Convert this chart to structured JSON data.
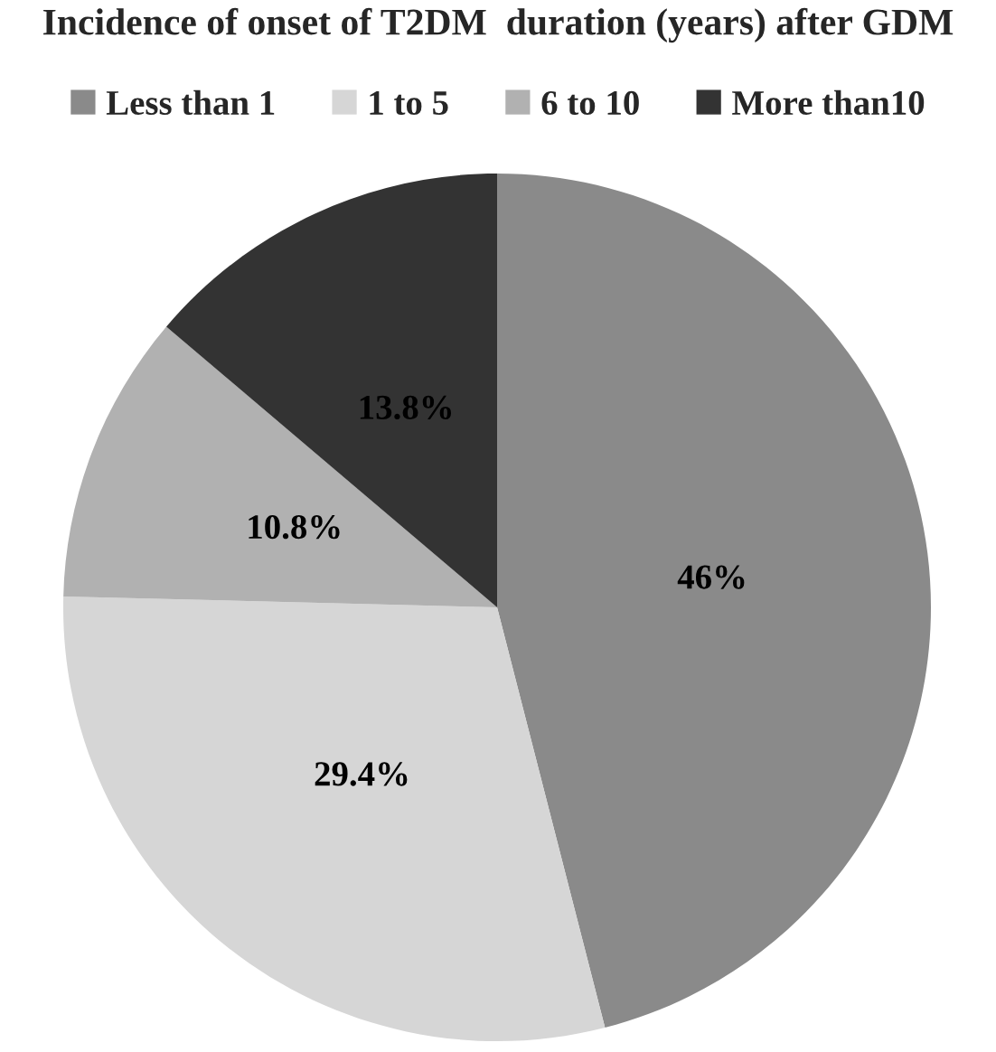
{
  "chart_data": {
    "type": "pie",
    "title": "Incidence of onset of T2DM  duration (years) after GDM",
    "categories": [
      "Less than 1",
      "1 to 5",
      "6 to 10",
      "More than10"
    ],
    "values": [
      46,
      29.4,
      10.8,
      13.8
    ],
    "colors": [
      "#8a8a8a",
      "#d6d6d6",
      "#b1b1b1",
      "#333333"
    ],
    "value_labels": [
      "46%",
      "29.4%",
      "10.8%",
      "13.8%"
    ],
    "legend": "top"
  }
}
